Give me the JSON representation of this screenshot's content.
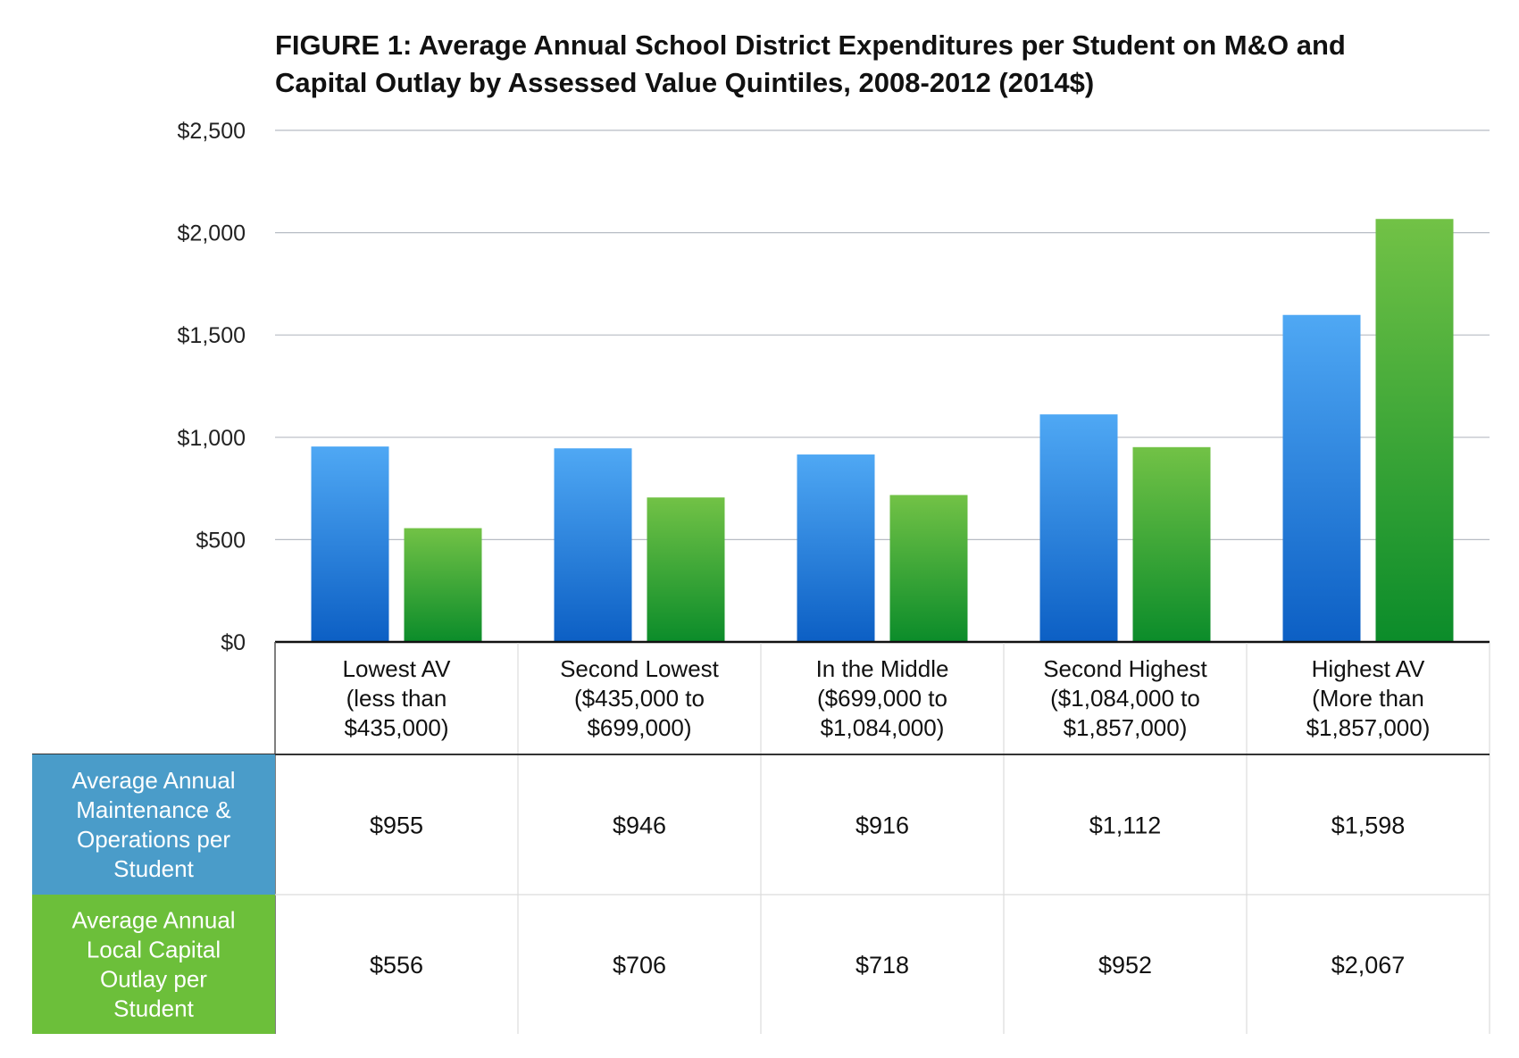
{
  "chart_data": {
    "type": "bar",
    "title": "FIGURE 1: Average Annual School District Expenditures per Student on M&O and Capital Outlay by Assessed Value Quintiles, 2008-2012 (2014$)",
    "title_lines": [
      "FIGURE 1: Average Annual School District Expenditures per Student on M&O and",
      "Capital Outlay by Assessed Value Quintiles, 2008-2012 (2014$)"
    ],
    "categories": [
      [
        "Lowest AV",
        "(less than",
        "$435,000)"
      ],
      [
        "Second Lowest",
        "($435,000 to",
        "$699,000)"
      ],
      [
        "In the Middle",
        "($699,000 to",
        "$1,084,000)"
      ],
      [
        "Second Highest",
        "($1,084,000 to",
        "$1,857,000)"
      ],
      [
        "Highest AV",
        "(More than",
        "$1,857,000)"
      ]
    ],
    "series": [
      {
        "name": "Average Annual Maintenance & Operations per Student",
        "name_lines": [
          "Average Annual",
          "Maintenance &",
          "Operations per",
          "Student"
        ],
        "values": [
          955,
          946,
          916,
          1112,
          1598
        ],
        "labels": [
          "$955",
          "$946",
          "$916",
          "$1,112",
          "$1,598"
        ],
        "color_top": "#4fa8f4",
        "color_bottom": "#0c5fc4",
        "legend_color": "#4a9cc9"
      },
      {
        "name": "Average Annual Local Capital Outlay per Student",
        "name_lines": [
          "Average Annual",
          "Local Capital",
          "Outlay per",
          "Student"
        ],
        "values": [
          556,
          706,
          718,
          952,
          2067
        ],
        "labels": [
          "$556",
          "$706",
          "$718",
          "$952",
          "$2,067"
        ],
        "color_top": "#72c246",
        "color_bottom": "#0b8c2a",
        "legend_color": "#6cbf3a"
      }
    ],
    "y_ticks": [
      {
        "value": 0,
        "label": "$0"
      },
      {
        "value": 500,
        "label": "$500"
      },
      {
        "value": 1000,
        "label": "$1,000"
      },
      {
        "value": 1500,
        "label": "$1,500"
      },
      {
        "value": 2000,
        "label": "$2,000"
      },
      {
        "value": 2500,
        "label": "$2,500"
      }
    ],
    "ylim": [
      0,
      2500
    ],
    "xlabel": "",
    "ylabel": "",
    "grid": true,
    "legend": "data-table below chart"
  }
}
